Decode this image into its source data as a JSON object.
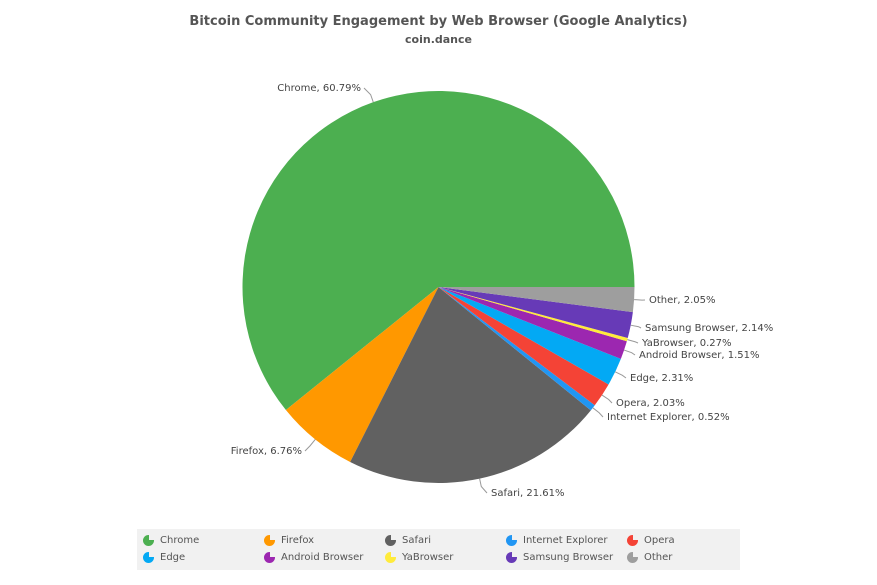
{
  "chart_data": {
    "type": "pie",
    "title": "Bitcoin Community Engagement by Web Browser (Google Analytics)",
    "subtitle": "coin.dance",
    "slices": [
      {
        "name": "Chrome",
        "value": 60.79,
        "label": "Chrome, 60.79%",
        "color": "#4caf50"
      },
      {
        "name": "Firefox",
        "value": 6.76,
        "label": "Firefox, 6.76%",
        "color": "#ff9800"
      },
      {
        "name": "Safari",
        "value": 21.61,
        "label": "Safari, 21.61%",
        "color": "#616161"
      },
      {
        "name": "Internet Explorer",
        "value": 0.52,
        "label": "Internet Explorer, 0.52%",
        "color": "#2196f3"
      },
      {
        "name": "Opera",
        "value": 2.03,
        "label": "Opera, 2.03%",
        "color": "#f44336"
      },
      {
        "name": "Edge",
        "value": 2.31,
        "label": "Edge, 2.31%",
        "color": "#03a9f4"
      },
      {
        "name": "Android Browser",
        "value": 1.51,
        "label": "Android Browser, 1.51%",
        "color": "#9c27b0"
      },
      {
        "name": "YaBrowser",
        "value": 0.27,
        "label": "YaBrowser, 0.27%",
        "color": "#ffeb3b"
      },
      {
        "name": "Samsung Browser",
        "value": 2.14,
        "label": "Samsung Browser, 2.14%",
        "color": "#673ab7"
      },
      {
        "name": "Other",
        "value": 2.05,
        "label": "Other, 2.05%",
        "color": "#9e9e9e"
      }
    ],
    "legend": {
      "placement": "bottom",
      "items": [
        "Chrome",
        "Firefox",
        "Safari",
        "Internet Explorer",
        "Opera",
        "Edge",
        "Android Browser",
        "YaBrowser",
        "Samsung Browser",
        "Other"
      ]
    }
  }
}
